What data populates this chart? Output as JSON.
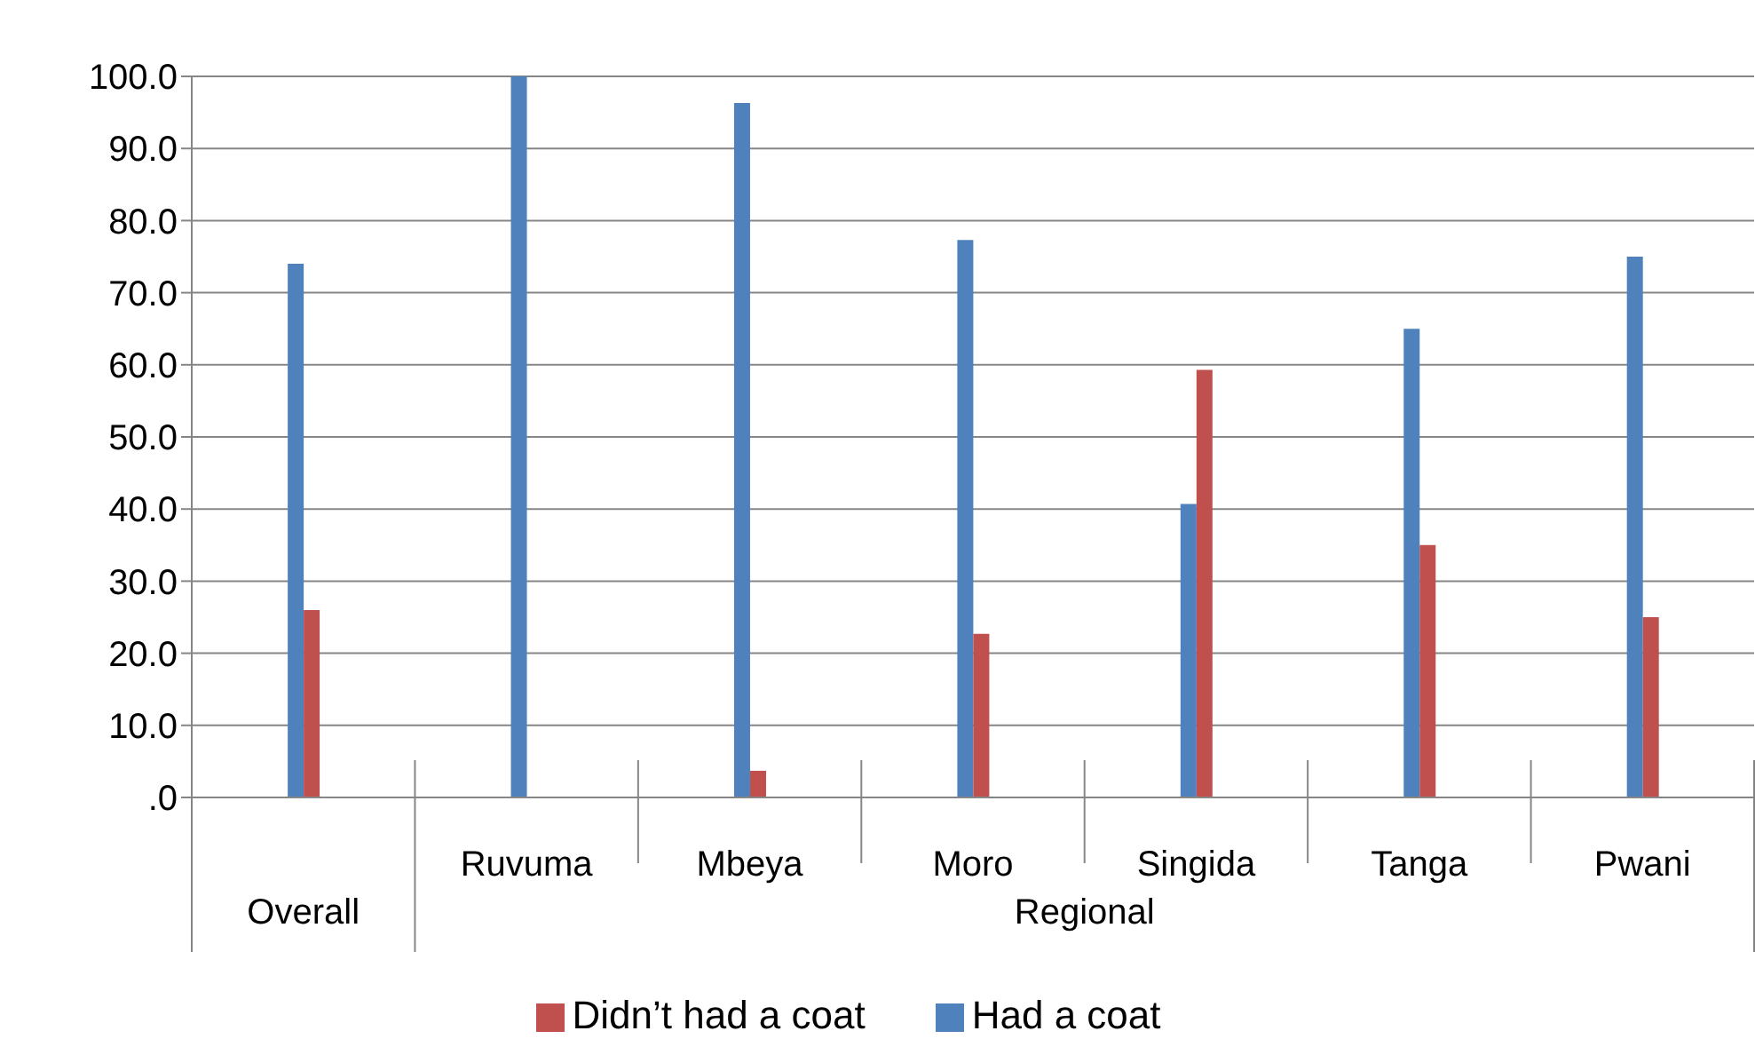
{
  "chart_data": {
    "type": "bar",
    "categories": [
      null,
      "Ruvuma",
      "Mbeya",
      "Moro",
      "Singida",
      "Tanga",
      "Pwani"
    ],
    "series": [
      {
        "name": "Had a coat",
        "color": "#4f81bd",
        "values": [
          74.0,
          100.0,
          96.3,
          77.3,
          40.7,
          65.0,
          75.0
        ]
      },
      {
        "name": "Didn’t had a coat",
        "color": "#c0504d",
        "values": [
          26.0,
          0.0,
          3.7,
          22.7,
          59.3,
          35.0,
          25.0
        ]
      }
    ],
    "annotations": [
      "Overall",
      "Regional"
    ],
    "ylim": [
      0,
      100
    ],
    "yticks": [
      {
        "value": 0,
        "label": ".0"
      },
      {
        "value": 10,
        "label": "10.0"
      },
      {
        "value": 20,
        "label": "20.0"
      },
      {
        "value": 30,
        "label": "30.0"
      },
      {
        "value": 40,
        "label": "40.0"
      },
      {
        "value": 50,
        "label": "50.0"
      },
      {
        "value": 60,
        "label": "60.0"
      },
      {
        "value": 70,
        "label": "70.0"
      },
      {
        "value": 80,
        "label": "80.0"
      },
      {
        "value": 90,
        "label": "90.0"
      },
      {
        "value": 100,
        "label": "100.0"
      }
    ],
    "grid": "y",
    "legend": "bottom"
  }
}
